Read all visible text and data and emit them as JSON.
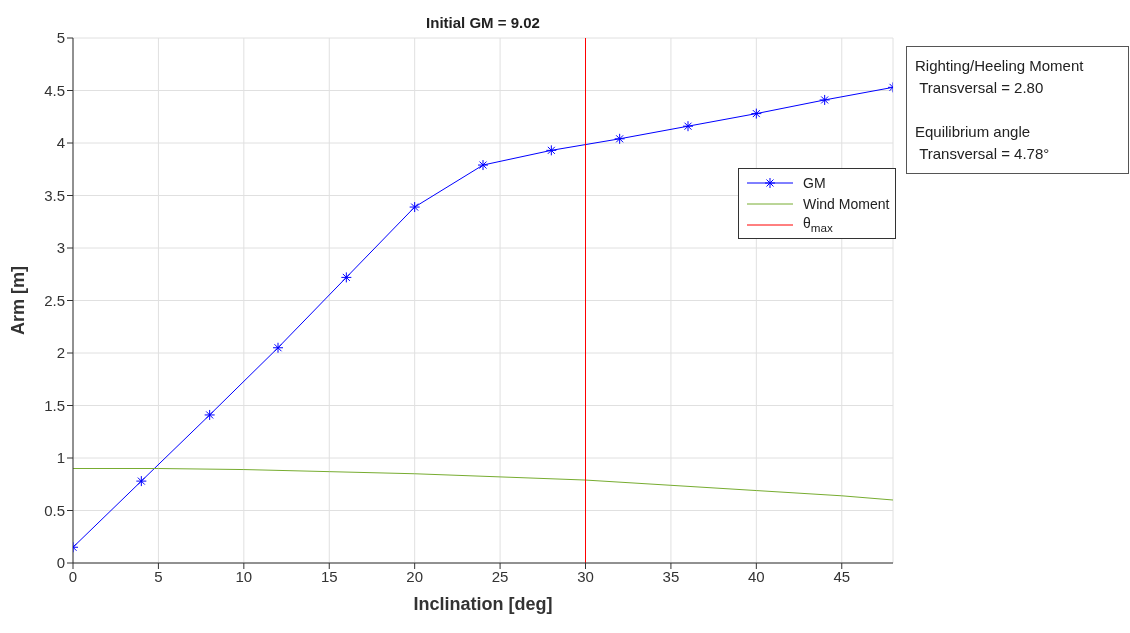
{
  "chart_data": {
    "type": "line",
    "title": "Initial GM = 9.02",
    "xlabel": "Inclination [deg]",
    "ylabel": "Arm [m]",
    "xlim": [
      0,
      48
    ],
    "xticks": [
      0,
      5,
      10,
      15,
      20,
      25,
      30,
      35,
      40,
      45
    ],
    "ylim": [
      0,
      5
    ],
    "yticks": [
      0,
      0.5,
      1,
      1.5,
      2,
      2.5,
      3,
      3.5,
      4,
      4.5,
      5
    ],
    "grid": true,
    "legend": "right",
    "series": [
      {
        "name": "GM",
        "color": "#0000ff",
        "marker": "cross",
        "x": [
          0,
          4,
          8,
          12,
          16,
          20,
          24,
          28,
          32,
          36,
          40,
          44,
          48
        ],
        "values": [
          0.15,
          0.78,
          1.41,
          2.05,
          2.72,
          3.39,
          3.79,
          3.93,
          4.04,
          4.16,
          4.28,
          4.41,
          4.53
        ]
      },
      {
        "name": "Wind Moment",
        "color": "#77ac30",
        "marker": "none",
        "x": [
          0,
          5,
          10,
          15,
          20,
          25,
          30,
          35,
          40,
          45,
          48
        ],
        "values": [
          0.9,
          0.9,
          0.89,
          0.87,
          0.85,
          0.82,
          0.79,
          0.74,
          0.69,
          0.64,
          0.6
        ]
      },
      {
        "name": "θ$_{max}$",
        "color": "#ff0000",
        "marker": "none",
        "x": [
          30,
          30
        ],
        "values": [
          0,
          5
        ]
      }
    ],
    "annotations": [
      "Righting/Heeling Moment\n Transversal = 2.80\n\nEquilibrium angle\n Transversal = 4.78°"
    ]
  }
}
